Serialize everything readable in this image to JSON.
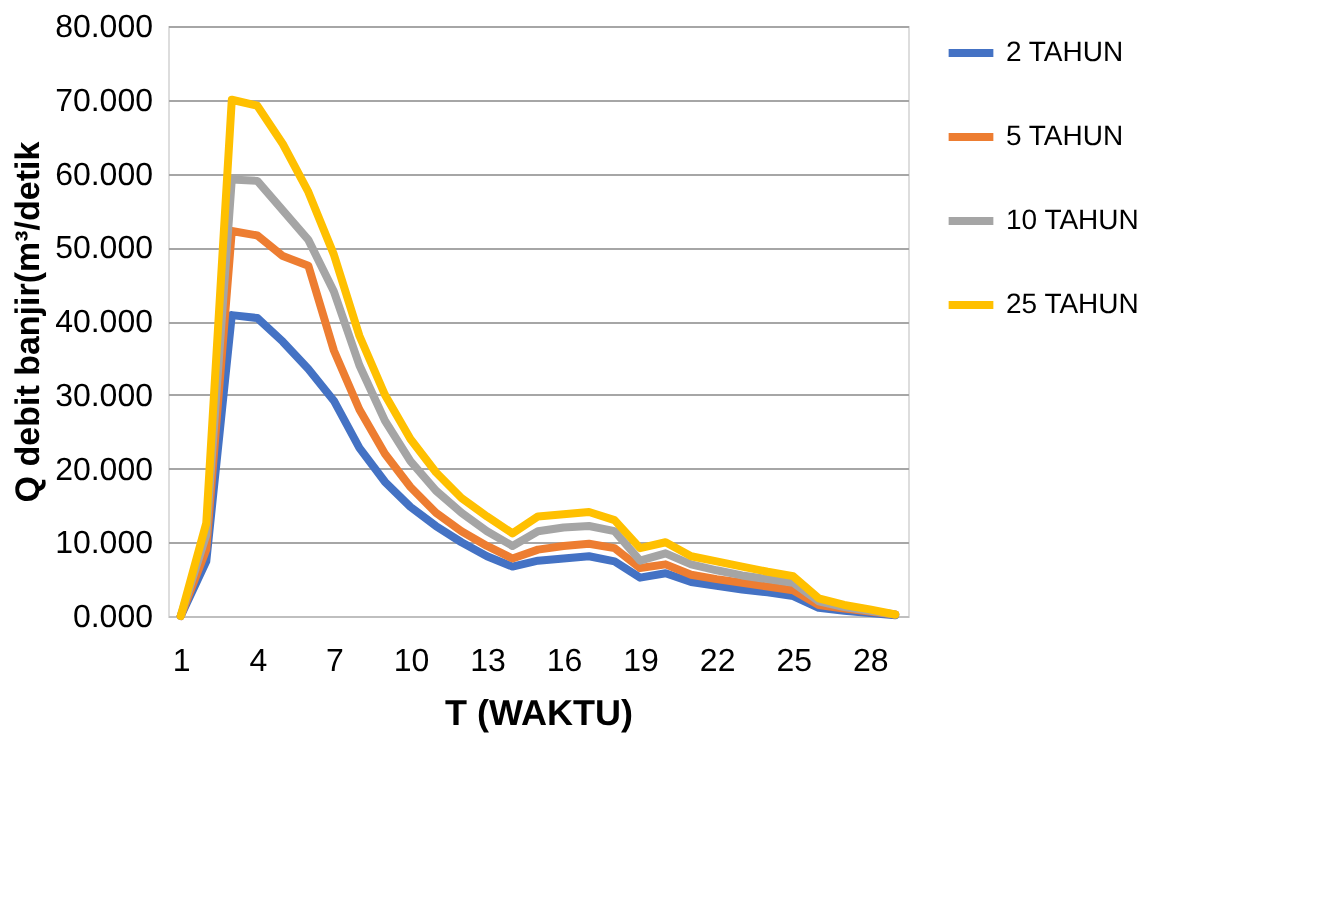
{
  "chart_data": {
    "type": "line",
    "xlabel": "T (WAKTU)",
    "ylabel": "Q debit banjir(m³/detik",
    "categories": [
      "1",
      null,
      null,
      "4",
      null,
      null,
      "7",
      null,
      null,
      "10",
      null,
      null,
      "13",
      null,
      null,
      "16",
      null,
      null,
      "19",
      null,
      null,
      "22",
      null,
      null,
      "25",
      null,
      null,
      "28",
      null
    ],
    "series": [
      {
        "name": "2 TAHUN",
        "color": "#4472c4",
        "values": [
          0,
          7.4,
          40.8,
          40.4,
          37.2,
          33.5,
          29.2,
          22.8,
          18.2,
          14.8,
          12.2,
          10.0,
          8.1,
          6.7,
          7.5,
          7.8,
          8.1,
          7.4,
          5.2,
          5.8,
          4.6,
          4.1,
          3.6,
          3.2,
          2.7,
          1.1,
          0.7,
          0.4,
          0.1
        ]
      },
      {
        "name": "5 TAHUN",
        "color": "#ed7d31",
        "values": [
          0,
          9.0,
          52.2,
          51.6,
          48.8,
          47.5,
          36.0,
          28.0,
          22.0,
          17.5,
          14.0,
          11.5,
          9.5,
          7.8,
          9.0,
          9.5,
          9.8,
          9.2,
          6.5,
          7.0,
          5.6,
          5.0,
          4.5,
          4.0,
          3.5,
          1.5,
          1.0,
          0.6,
          0.2
        ]
      },
      {
        "name": "10 TAHUN",
        "color": "#a5a5a5",
        "values": [
          0,
          11.0,
          59.2,
          59.0,
          55.0,
          51.0,
          44.0,
          34.0,
          26.5,
          21.0,
          17.0,
          14.0,
          11.5,
          9.5,
          11.5,
          12.0,
          12.2,
          11.5,
          7.5,
          8.5,
          7.0,
          6.2,
          5.5,
          5.0,
          4.5,
          2.0,
          1.2,
          0.7,
          0.2
        ]
      },
      {
        "name": "25 TAHUN",
        "color": "#ffc000",
        "values": [
          0,
          12.6,
          70.0,
          69.2,
          64.0,
          57.5,
          49.0,
          38.0,
          30.0,
          24.0,
          19.5,
          16.0,
          13.5,
          11.2,
          13.5,
          13.8,
          14.1,
          13.0,
          9.2,
          10.0,
          8.1,
          7.4,
          6.7,
          6.0,
          5.4,
          2.4,
          1.5,
          0.9,
          0.2
        ]
      }
    ],
    "ylim": [
      0,
      80
    ],
    "yticks": [
      {
        "value": 0,
        "label": "0.000"
      },
      {
        "value": 10,
        "label": "10.000"
      },
      {
        "value": 20,
        "label": "20.000"
      },
      {
        "value": 30,
        "label": "30.000"
      },
      {
        "value": 40,
        "label": "40.000"
      },
      {
        "value": 50,
        "label": "50.000"
      },
      {
        "value": 60,
        "label": "60.000"
      },
      {
        "value": 70,
        "label": "70.000"
      },
      {
        "value": 80,
        "label": "80.000"
      }
    ],
    "grid": "y",
    "legend": "right",
    "marker": "none",
    "line_style": "solid"
  }
}
